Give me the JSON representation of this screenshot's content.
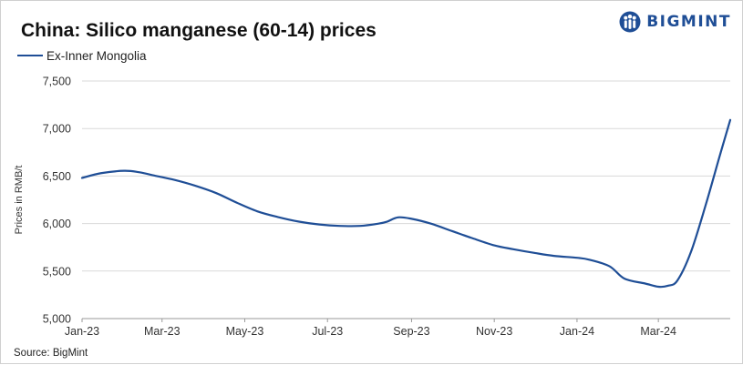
{
  "title": "China: Silico manganese (60-14) prices",
  "logo": {
    "text": "BIGMINT",
    "icon": "bigmint-people-icon"
  },
  "source": "Source: BigMint",
  "colors": {
    "series": "#1f4e96",
    "grid": "#d9d9d9",
    "brand": "#1f4e96"
  },
  "chart_data": {
    "type": "line",
    "title": "China: Silico manganese (60-14) prices",
    "ylabel": "Prices in RMB/t",
    "xlabel": "",
    "ylim": [
      5000,
      7500
    ],
    "yticks": [
      5000,
      5500,
      6000,
      6500,
      7000,
      7500
    ],
    "ytick_labels": [
      "5,000",
      "5,500",
      "6,000",
      "6,500",
      "7,000",
      "7,500"
    ],
    "xlim": [
      "2023-01-01",
      "2024-04-23"
    ],
    "xticks": [
      "2023-01-01",
      "2023-03-01",
      "2023-05-01",
      "2023-07-01",
      "2023-09-01",
      "2023-11-01",
      "2024-01-01",
      "2024-03-01"
    ],
    "xtick_labels": [
      "Jan-23",
      "Mar-23",
      "May-23",
      "Jul-23",
      "Sep-23",
      "Nov-23",
      "Jan-24",
      "Mar-24"
    ],
    "grid": "horizontal",
    "legend_position": "top-left",
    "series": [
      {
        "name": "Ex-Inner Mongolia",
        "color": "#1f4e96",
        "x": [
          "2023-01-01",
          "2023-01-15",
          "2023-02-01",
          "2023-02-12",
          "2023-02-25",
          "2023-03-10",
          "2023-03-25",
          "2023-04-10",
          "2023-04-25",
          "2023-05-10",
          "2023-05-25",
          "2023-06-10",
          "2023-06-25",
          "2023-07-10",
          "2023-07-25",
          "2023-08-08",
          "2023-08-14",
          "2023-08-22",
          "2023-09-01",
          "2023-09-15",
          "2023-10-01",
          "2023-10-15",
          "2023-11-01",
          "2023-11-15",
          "2023-12-01",
          "2023-12-15",
          "2024-01-01",
          "2024-01-10",
          "2024-01-25",
          "2024-02-05",
          "2024-02-20",
          "2024-03-01",
          "2024-03-08",
          "2024-03-15",
          "2024-03-25",
          "2024-04-05",
          "2024-04-15",
          "2024-04-23"
        ],
        "y": [
          6480,
          6530,
          6555,
          6540,
          6500,
          6460,
          6400,
          6320,
          6220,
          6130,
          6070,
          6020,
          5990,
          5975,
          5975,
          6000,
          6020,
          6065,
          6050,
          6000,
          5920,
          5850,
          5770,
          5730,
          5690,
          5660,
          5640,
          5620,
          5550,
          5420,
          5370,
          5335,
          5345,
          5400,
          5700,
          6200,
          6700,
          7090
        ]
      }
    ]
  }
}
